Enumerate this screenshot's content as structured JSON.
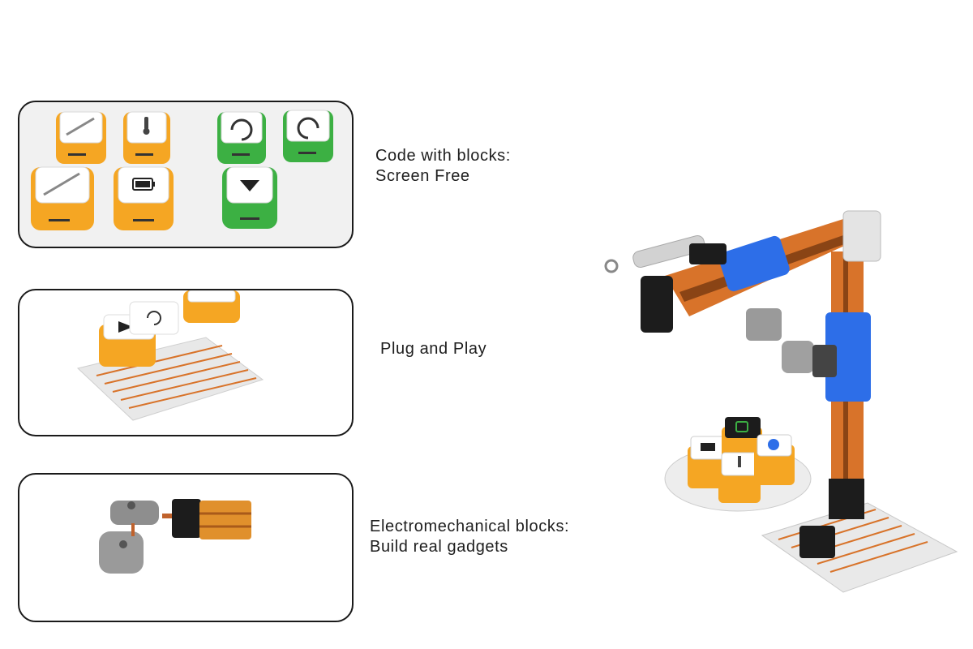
{
  "captions": {
    "code_blocks": {
      "line1": "Code with blocks:",
      "line2": "Screen Free"
    },
    "plug_play": {
      "line1": "Plug and Play"
    },
    "electromech": {
      "line1": "Electromechanical blocks:",
      "line2": "Build real gadgets"
    }
  },
  "colors": {
    "orange_block": "#f5a623",
    "green_block": "#3cb043",
    "blue_part": "#2d6ee8",
    "rail_orange": "#d8732a",
    "dark_part": "#1c1c1c"
  },
  "icons": {
    "panel1": [
      "actuator-icon",
      "thermometer-icon",
      "rotate-ccw-icon",
      "rotate-cw-icon",
      "actuator-icon",
      "battery-icon",
      "arrow-down-icon"
    ],
    "robot_base": [
      "battery-icon",
      "vibration-icon",
      "bluetooth-icon",
      "thermometer-icon"
    ]
  }
}
